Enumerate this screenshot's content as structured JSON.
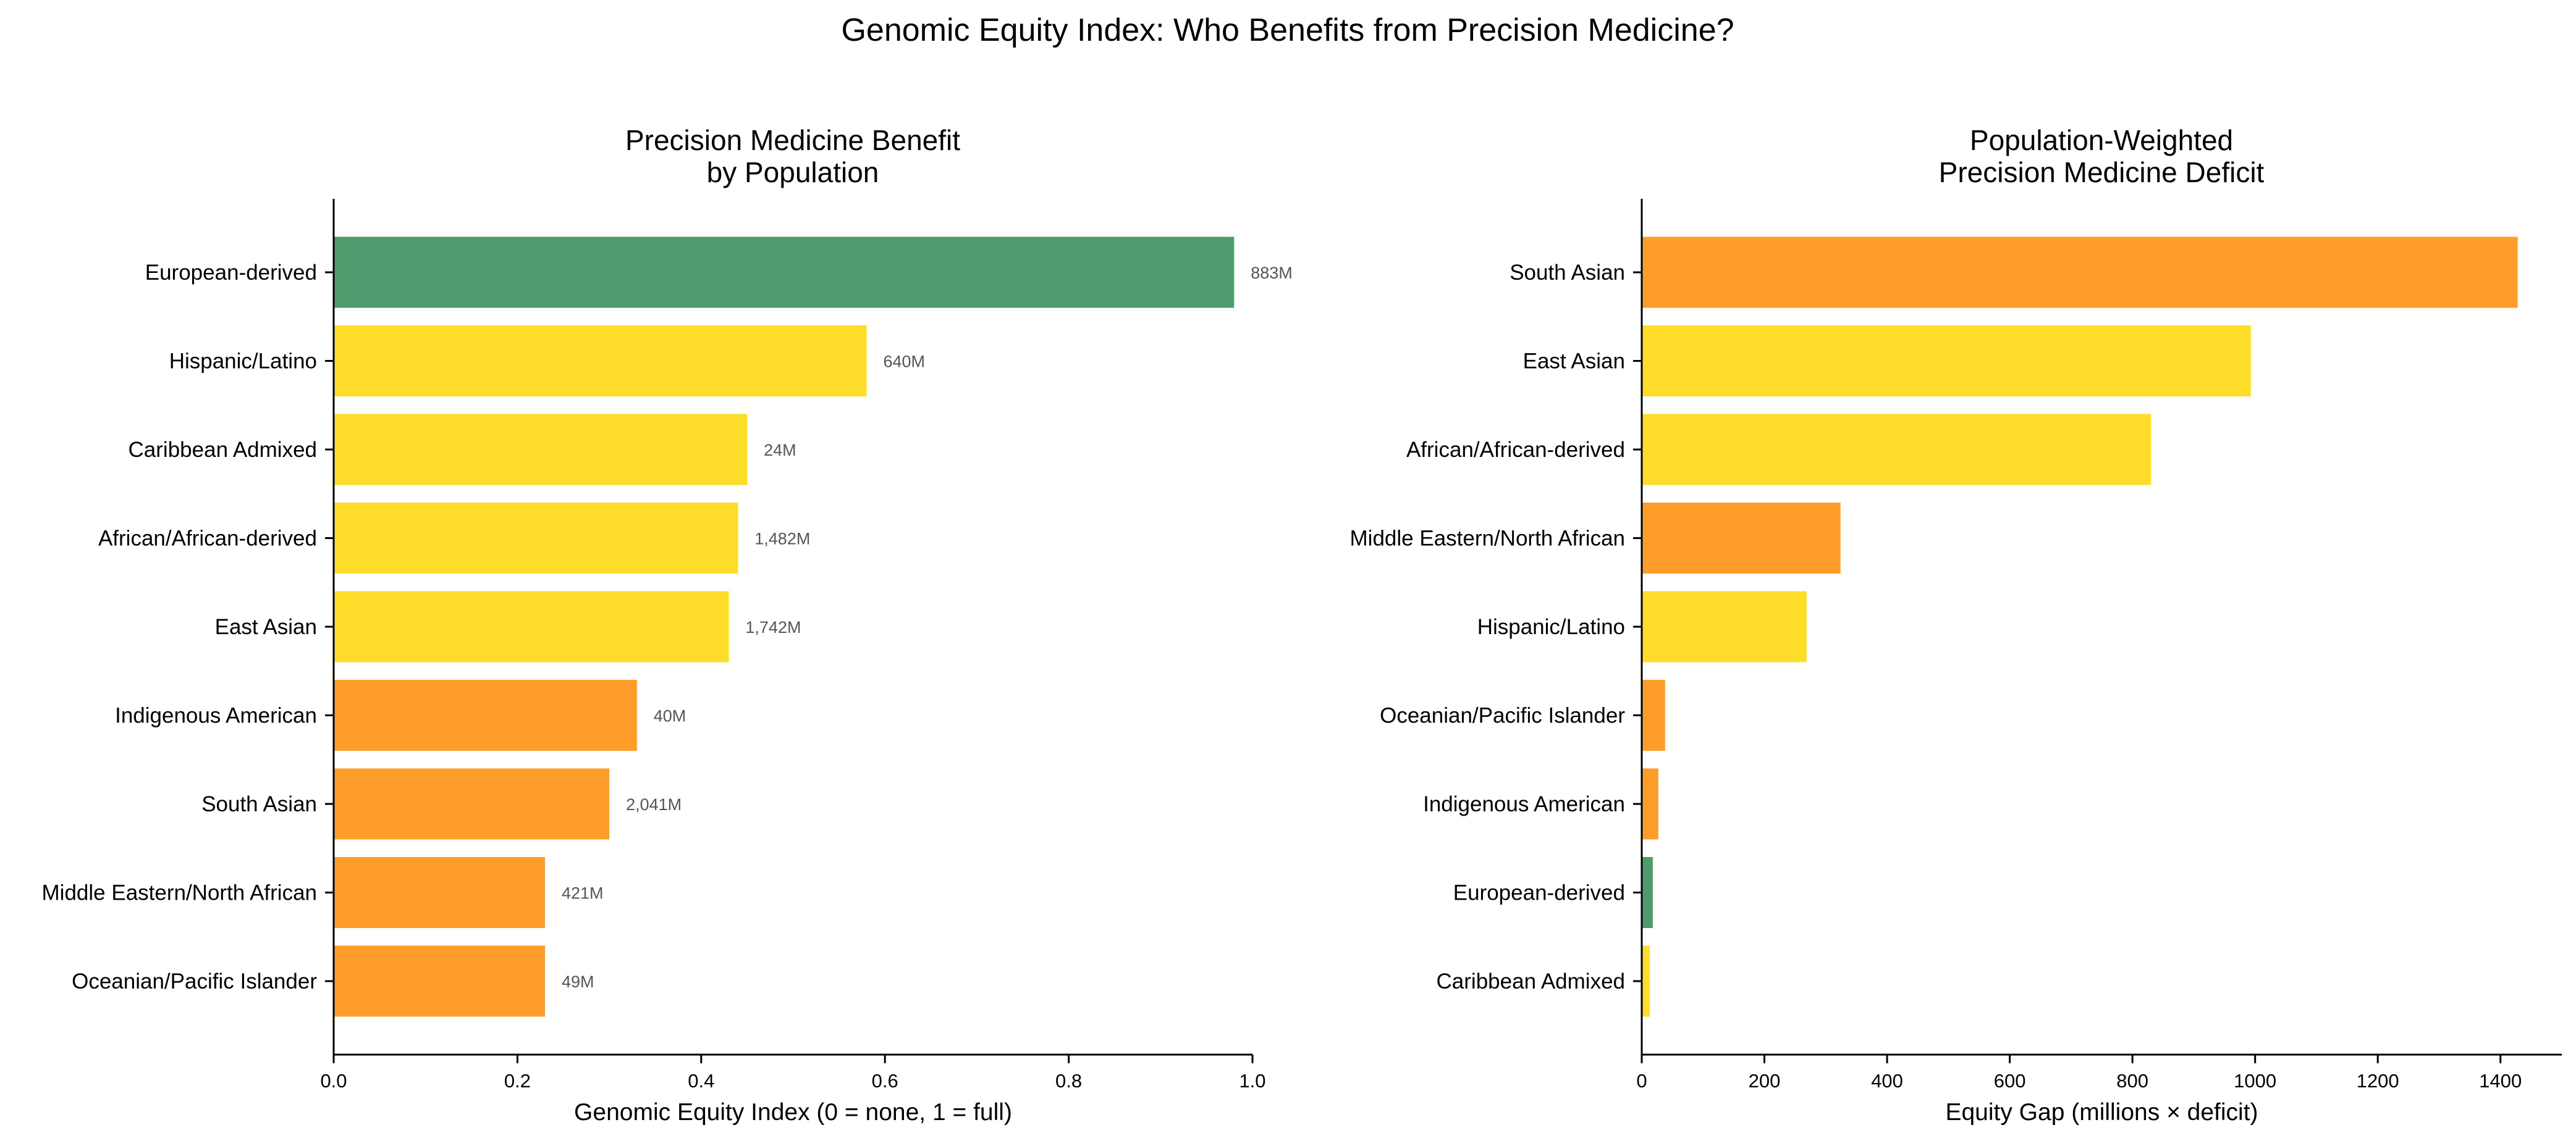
{
  "figure_title": "Genomic Equity Index: Who Benefits from Precision Medicine?",
  "colors": {
    "high": "#4f9b6e",
    "medium": "#fddd2a",
    "low": "#fe9d2a"
  },
  "chart_data": [
    {
      "type": "bar",
      "orientation": "horizontal",
      "title_lines": [
        "Precision Medicine Benefit",
        "by Population"
      ],
      "xlabel": "Genomic Equity Index (0 = none, 1 = full)",
      "ylabel": "",
      "xlim": [
        0,
        1.0
      ],
      "xticks": [
        0.0,
        0.2,
        0.4,
        0.6,
        0.8,
        1.0
      ],
      "xtick_labels": [
        "0.0",
        "0.2",
        "0.4",
        "0.6",
        "0.8",
        "1.0"
      ],
      "grid": false,
      "categories": [
        "European-derived",
        "Hispanic/Latino",
        "Caribbean Admixed",
        "African/African-derived",
        "East Asian",
        "Indigenous American",
        "South Asian",
        "Middle Eastern/North African",
        "Oceanian/Pacific Islander"
      ],
      "values": [
        0.98,
        0.58,
        0.45,
        0.44,
        0.43,
        0.33,
        0.3,
        0.23,
        0.23
      ],
      "color_groups": [
        "high",
        "medium",
        "medium",
        "medium",
        "medium",
        "low",
        "low",
        "low",
        "low"
      ],
      "data_labels": [
        "883M",
        "640M",
        "24M",
        "1,482M",
        "1,742M",
        "40M",
        "2,041M",
        "421M",
        "49M"
      ]
    },
    {
      "type": "bar",
      "orientation": "horizontal",
      "title_lines": [
        "Population-Weighted",
        "Precision Medicine Deficit"
      ],
      "xlabel": "Equity Gap (millions × deficit)",
      "ylabel": "",
      "xlim": [
        0,
        1500
      ],
      "xticks": [
        0,
        200,
        400,
        600,
        800,
        1000,
        1200,
        1400
      ],
      "xtick_labels": [
        "0",
        "200",
        "400",
        "600",
        "800",
        "1000",
        "1200",
        "1400"
      ],
      "grid": false,
      "categories": [
        "South Asian",
        "East Asian",
        "African/African-derived",
        "Middle Eastern/North African",
        "Hispanic/Latino",
        "Oceanian/Pacific Islander",
        "Indigenous American",
        "European-derived",
        "Caribbean Admixed"
      ],
      "values": [
        1428,
        993,
        830,
        324,
        269,
        38,
        27,
        18,
        13
      ],
      "color_groups": [
        "low",
        "medium",
        "medium",
        "low",
        "medium",
        "low",
        "low",
        "high",
        "medium"
      ]
    }
  ]
}
